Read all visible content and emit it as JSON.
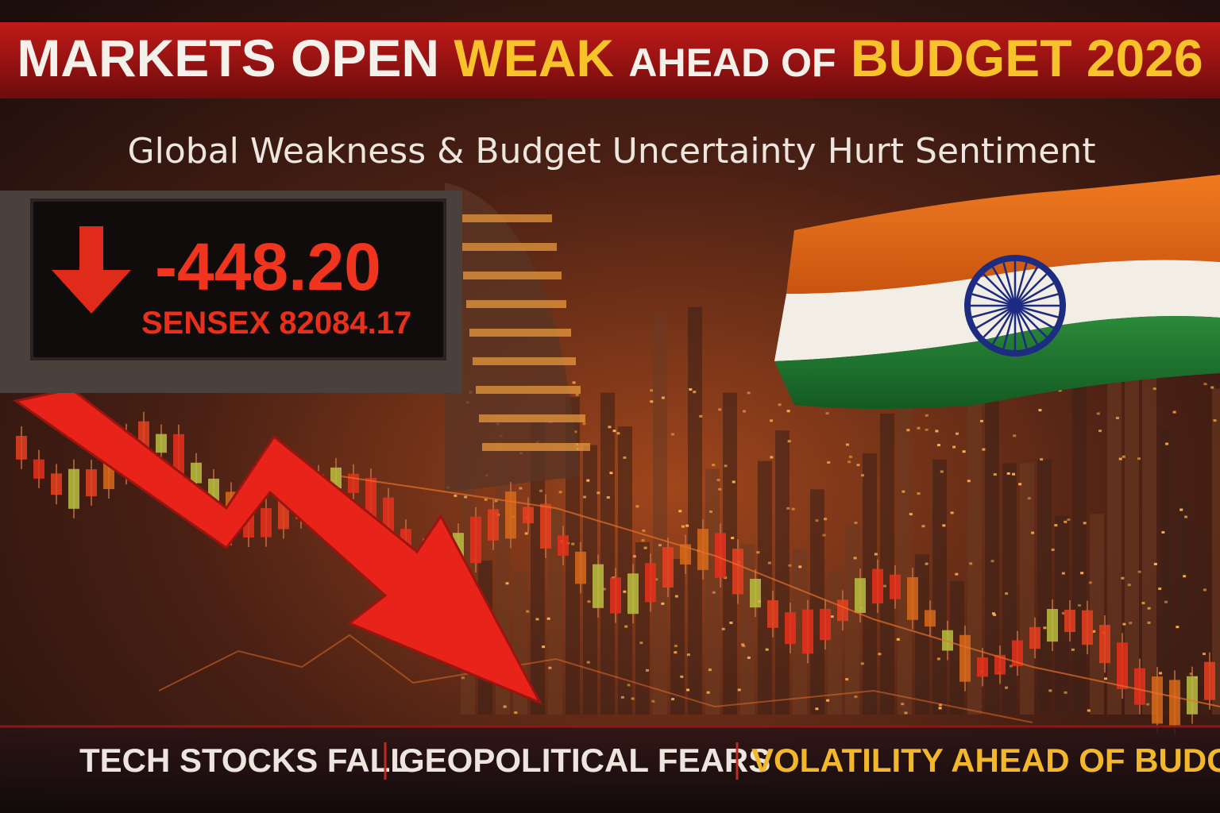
{
  "header": {
    "title_parts": [
      "MARKETS OPEN",
      "WEAK",
      "AHEAD OF",
      "BUDGET 2026"
    ],
    "subtitle": "Global Weakness & Budget Uncertainty Hurt Sentiment"
  },
  "ticker": {
    "change": "-448.20",
    "index": "SENSEX 82084.17"
  },
  "footer": {
    "items": [
      "TECH STOCKS FALL",
      "GEOPOLITICAL FEARS",
      "VOLATILITY AHEAD OF BUDGET"
    ]
  }
}
